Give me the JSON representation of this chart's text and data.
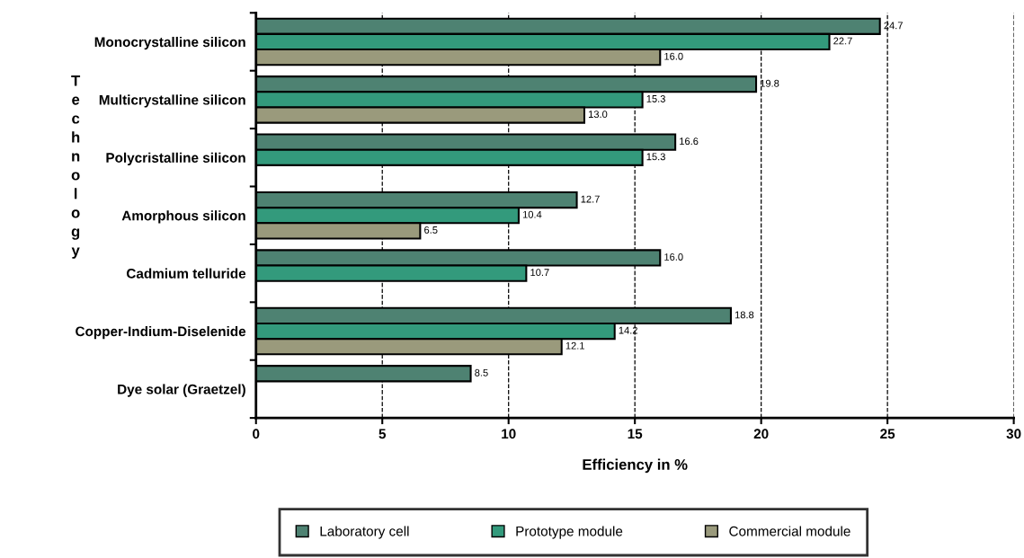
{
  "chart_data": {
    "type": "bar",
    "orientation": "horizontal",
    "xlabel": "Efficiency in %",
    "ylabel": "Technology",
    "categories": [
      "Monocrystalline silicon",
      "Multicrystalline silicon",
      "Polycristalline silicon",
      "Amorphous silicon",
      "Cadmium telluride",
      "Copper-Indium-Diselenide",
      "Dye solar (Graetzel)"
    ],
    "series": [
      {
        "name": "Laboratory cell",
        "color": "#4e8272",
        "values": [
          24.7,
          19.8,
          16.6,
          12.7,
          16.0,
          18.8,
          8.5
        ],
        "value_labels": [
          "24.7",
          "19.8",
          "16.6",
          "12.7",
          "16.0",
          "18.8",
          "8.5"
        ]
      },
      {
        "name": "Prototype module",
        "color": "#339a7c",
        "values": [
          22.7,
          15.3,
          15.3,
          10.4,
          10.7,
          14.2,
          null
        ],
        "value_labels": [
          "22.7",
          "15.3",
          "15.3",
          "10.4",
          "10.7",
          "14.2",
          null
        ]
      },
      {
        "name": "Commercial module",
        "color": "#9a9a7c",
        "values": [
          16.0,
          13.0,
          null,
          6.5,
          null,
          12.1,
          null
        ],
        "value_labels": [
          "16.0",
          "13.0",
          null,
          "6.5",
          null,
          "12.1",
          null
        ]
      }
    ],
    "xlim": [
      0,
      30
    ],
    "xticks": [
      0,
      5,
      10,
      15,
      20,
      25,
      30
    ],
    "grid": "x",
    "line_style": "dashed",
    "legend": "bottom"
  }
}
